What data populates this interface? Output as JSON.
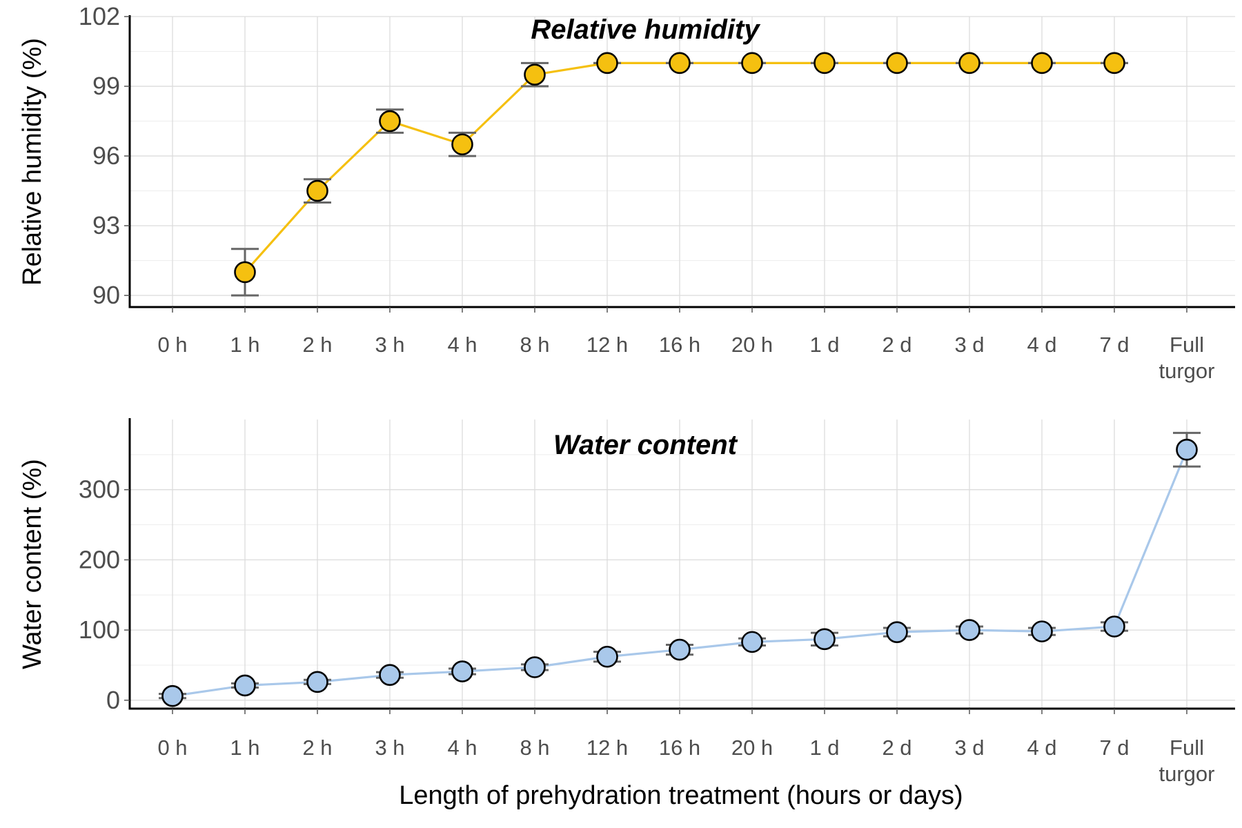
{
  "x_axis_title": "Length of prehydration treatment (hours or days)",
  "chart_data": [
    {
      "type": "line",
      "title": "Relative humidity",
      "ylabel": "Relative humidity (%)",
      "ylim": [
        89.5,
        102
      ],
      "yticks": [
        90,
        93,
        96,
        99,
        102
      ],
      "categories": [
        "0 h",
        "1 h",
        "2 h",
        "3 h",
        "4 h",
        "8 h",
        "12 h",
        "16 h",
        "20 h",
        "1 d",
        "2 d",
        "3 d",
        "4 d",
        "7 d",
        "Full\nturgor"
      ],
      "series": [
        {
          "color": "#F5C010",
          "values": [
            null,
            91.0,
            94.5,
            97.5,
            96.5,
            99.5,
            100.0,
            100.0,
            100.0,
            100.0,
            100.0,
            100.0,
            100.0,
            100.0,
            null
          ],
          "err_low": [
            null,
            90.0,
            94.0,
            97.0,
            96.0,
            99.0,
            100.0,
            100.0,
            100.0,
            100.0,
            100.0,
            100.0,
            100.0,
            100.0,
            null
          ],
          "err_high": [
            null,
            92.0,
            95.0,
            98.0,
            97.0,
            100.0,
            100.0,
            100.0,
            100.0,
            100.0,
            100.0,
            100.0,
            100.0,
            100.0,
            null
          ]
        }
      ],
      "grid": true
    },
    {
      "type": "line",
      "title": "Water content",
      "ylabel": "Water content (%)",
      "ylim": [
        -12,
        400
      ],
      "yticks": [
        0,
        100,
        200,
        300
      ],
      "categories": [
        "0 h",
        "1 h",
        "2 h",
        "3 h",
        "4 h",
        "8 h",
        "12 h",
        "16 h",
        "20 h",
        "1 d",
        "2 d",
        "3 d",
        "4 d",
        "7 d",
        "Full\nturgor"
      ],
      "series": [
        {
          "color": "#A9C8EA",
          "values": [
            6,
            21,
            26,
            36,
            41,
            47,
            62,
            72,
            83,
            87,
            97,
            100,
            98,
            105,
            357
          ],
          "err_low": [
            3,
            18,
            23,
            32,
            37,
            43,
            55,
            65,
            78,
            78,
            91,
            95,
            93,
            99,
            333
          ],
          "err_high": [
            9,
            24,
            29,
            40,
            45,
            51,
            69,
            79,
            88,
            96,
            103,
            105,
            103,
            111,
            381
          ]
        }
      ],
      "grid": true
    }
  ]
}
